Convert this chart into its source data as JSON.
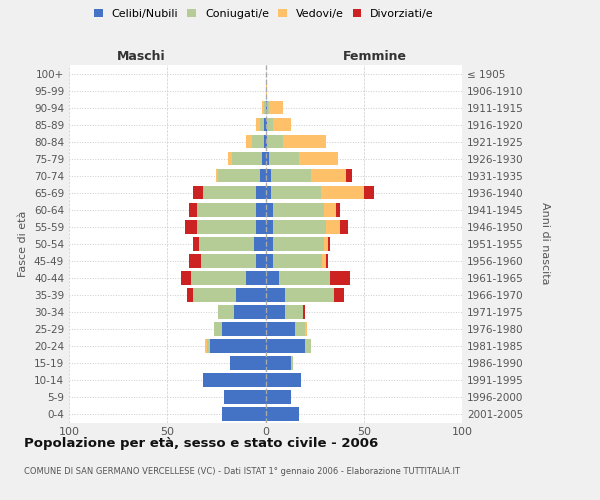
{
  "age_groups": [
    "0-4",
    "5-9",
    "10-14",
    "15-19",
    "20-24",
    "25-29",
    "30-34",
    "35-39",
    "40-44",
    "45-49",
    "50-54",
    "55-59",
    "60-64",
    "65-69",
    "70-74",
    "75-79",
    "80-84",
    "85-89",
    "90-94",
    "95-99",
    "100+"
  ],
  "birth_years": [
    "2001-2005",
    "1996-2000",
    "1991-1995",
    "1986-1990",
    "1981-1985",
    "1976-1980",
    "1971-1975",
    "1966-1970",
    "1961-1965",
    "1956-1960",
    "1951-1955",
    "1946-1950",
    "1941-1945",
    "1936-1940",
    "1931-1935",
    "1926-1930",
    "1921-1925",
    "1916-1920",
    "1911-1915",
    "1906-1910",
    "≤ 1905"
  ],
  "colors": {
    "celibi": "#4472c4",
    "coniugati": "#b5cc96",
    "vedovi": "#ffc06a",
    "divorziati": "#cc2222"
  },
  "maschi": {
    "celibi": [
      22,
      21,
      32,
      18,
      28,
      22,
      16,
      15,
      10,
      5,
      6,
      5,
      5,
      5,
      3,
      2,
      1,
      1,
      0,
      0,
      0
    ],
    "coniugati": [
      0,
      0,
      0,
      0,
      2,
      4,
      8,
      22,
      28,
      28,
      28,
      30,
      30,
      27,
      21,
      15,
      6,
      2,
      1,
      0,
      0
    ],
    "vedovi": [
      0,
      0,
      0,
      0,
      1,
      0,
      0,
      0,
      0,
      0,
      0,
      0,
      0,
      0,
      1,
      2,
      3,
      2,
      1,
      0,
      0
    ],
    "divorziati": [
      0,
      0,
      0,
      0,
      0,
      0,
      0,
      3,
      5,
      6,
      3,
      6,
      4,
      5,
      0,
      0,
      0,
      0,
      0,
      0,
      0
    ]
  },
  "femmine": {
    "celibi": [
      17,
      13,
      18,
      13,
      20,
      15,
      10,
      10,
      7,
      4,
      4,
      4,
      4,
      3,
      3,
      2,
      1,
      1,
      1,
      0,
      0
    ],
    "coniugati": [
      0,
      0,
      0,
      1,
      3,
      5,
      9,
      25,
      26,
      25,
      26,
      27,
      26,
      25,
      20,
      15,
      8,
      3,
      1,
      0,
      0
    ],
    "vedovi": [
      0,
      0,
      0,
      0,
      0,
      1,
      0,
      0,
      0,
      2,
      2,
      7,
      6,
      22,
      18,
      20,
      22,
      9,
      7,
      1,
      0
    ],
    "divorziati": [
      0,
      0,
      0,
      0,
      0,
      0,
      1,
      5,
      10,
      1,
      1,
      4,
      2,
      5,
      3,
      0,
      0,
      0,
      0,
      0,
      0
    ]
  },
  "xlim": 100,
  "title": "Popolazione per età, sesso e stato civile - 2006",
  "subtitle": "COMUNE DI SAN GERMANO VERCELLESE (VC) - Dati ISTAT 1° gennaio 2006 - Elaborazione TUTTITALIA.IT",
  "ylabel_left": "Fasce di età",
  "ylabel_right": "Anni di nascita",
  "xlabel_left": "Maschi",
  "xlabel_right": "Femmine",
  "bg_color": "#f0f0f0",
  "plot_bg_color": "#ffffff",
  "legend_labels": [
    "Celibi/Nubili",
    "Coniugati/e",
    "Vedovi/e",
    "Divorziati/e"
  ]
}
